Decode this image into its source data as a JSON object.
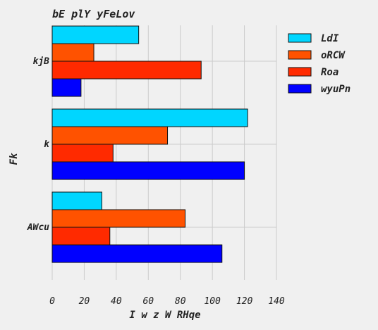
{
  "chart_data": {
    "type": "bar",
    "orientation": "horizontal",
    "title": "bE plY  yFeLov",
    "xlabel": "I w z W   RHqe",
    "ylabel": "Fk",
    "categories": [
      "kjB",
      "k",
      "AWcu"
    ],
    "series": [
      {
        "name": "LdI",
        "color": "#00d6ff",
        "values": [
          54,
          122,
          31
        ]
      },
      {
        "name": "oRCW",
        "color": "#ff5200",
        "values": [
          26,
          72,
          83
        ]
      },
      {
        "name": "Roa",
        "color": "#ff2a00",
        "values": [
          93,
          38,
          36
        ]
      },
      {
        "name": "wyuPn",
        "color": "#0000ff",
        "values": [
          18,
          120,
          106
        ]
      }
    ],
    "xlim": [
      0,
      140
    ],
    "xticks": [
      0,
      20,
      40,
      60,
      80,
      100,
      120,
      140
    ],
    "grid": true,
    "legend": "top-right"
  }
}
